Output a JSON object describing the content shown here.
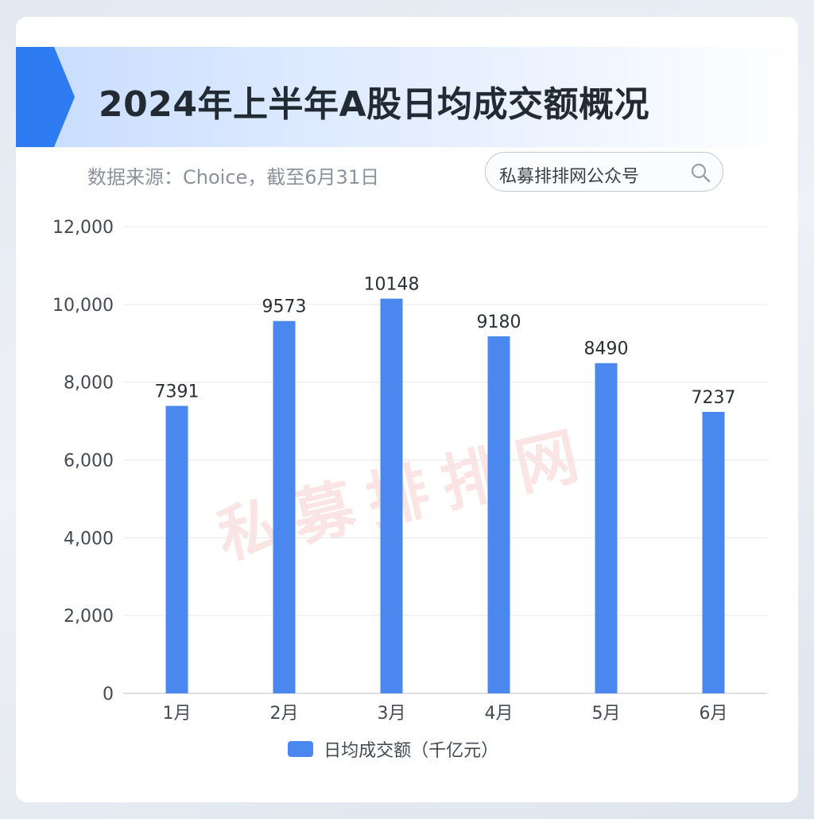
{
  "header": {
    "title": "2024年上半年A股日均成交额概况",
    "source_note": "数据来源：Choice，截至6月31日",
    "search_label": "私募排排网公众号"
  },
  "watermark": "私募排排网",
  "colors": {
    "bar": "#4a88f0",
    "accent": "#2f7bf1",
    "grid": "#e7e9ee",
    "axis_text": "#444a52"
  },
  "chart_data": {
    "type": "bar",
    "title": "2024年上半年A股日均成交额概况",
    "categories": [
      "1月",
      "2月",
      "3月",
      "4月",
      "5月",
      "6月"
    ],
    "series": [
      {
        "name": "日均成交额（千亿元）",
        "values": [
          7391,
          9573,
          10148,
          9180,
          8490,
          7237
        ]
      }
    ],
    "ylim": [
      0,
      12000
    ],
    "yticks": [
      "0",
      "2,000",
      "4,000",
      "6,000",
      "8,000",
      "10,000",
      "12,000"
    ],
    "data_labels": [
      "7391",
      "9573",
      "10148",
      "9180",
      "8490",
      "7237"
    ],
    "grid": true,
    "legend": "bottom"
  }
}
